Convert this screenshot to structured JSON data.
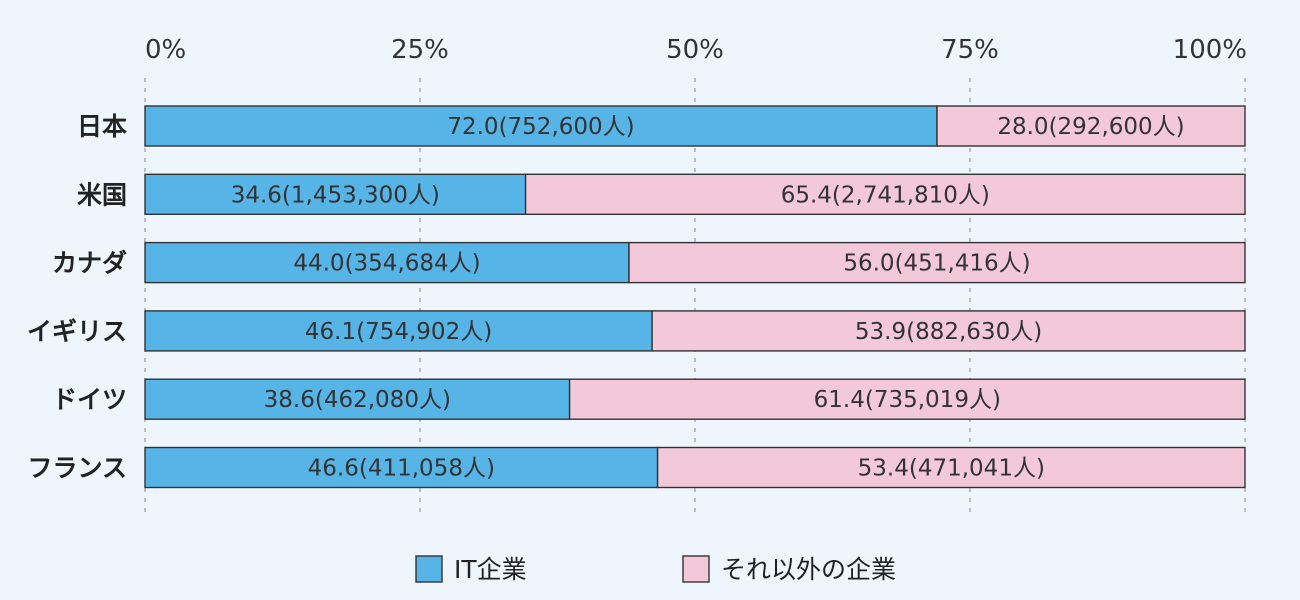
{
  "chart_data": {
    "type": "bar",
    "orientation": "horizontal",
    "stacked": true,
    "title": "",
    "xlabel": "",
    "ylabel": "",
    "xlim": [
      0,
      100
    ],
    "ticks": [
      "0%",
      "25%",
      "50%",
      "75%",
      "100%"
    ],
    "tick_values": [
      0,
      25,
      50,
      75,
      100
    ],
    "grid": true,
    "legend_position": "bottom",
    "categories": [
      "日本",
      "米国",
      "カナダ",
      "イギリス",
      "ドイツ",
      "フランス"
    ],
    "series": [
      {
        "name": "IT企業",
        "color": "#57b4e6",
        "values": [
          72.0,
          34.6,
          44.0,
          46.1,
          38.6,
          46.6
        ],
        "labels": [
          "72.0(752,600人)",
          "34.6(1,453,300人)",
          "44.0(354,684人)",
          "46.1(754,902人)",
          "38.6(462,080人)",
          "46.6(411,058人)"
        ]
      },
      {
        "name": "それ以外の企業",
        "color": "#f3c9da",
        "values": [
          28.0,
          65.4,
          56.0,
          53.9,
          61.4,
          53.4
        ],
        "labels": [
          "28.0(292,600人)",
          "65.4(2,741,810人)",
          "56.0(451,416人)",
          "53.9(882,630人)",
          "61.4(735,019人)",
          "53.4(471,041人)"
        ]
      }
    ]
  }
}
